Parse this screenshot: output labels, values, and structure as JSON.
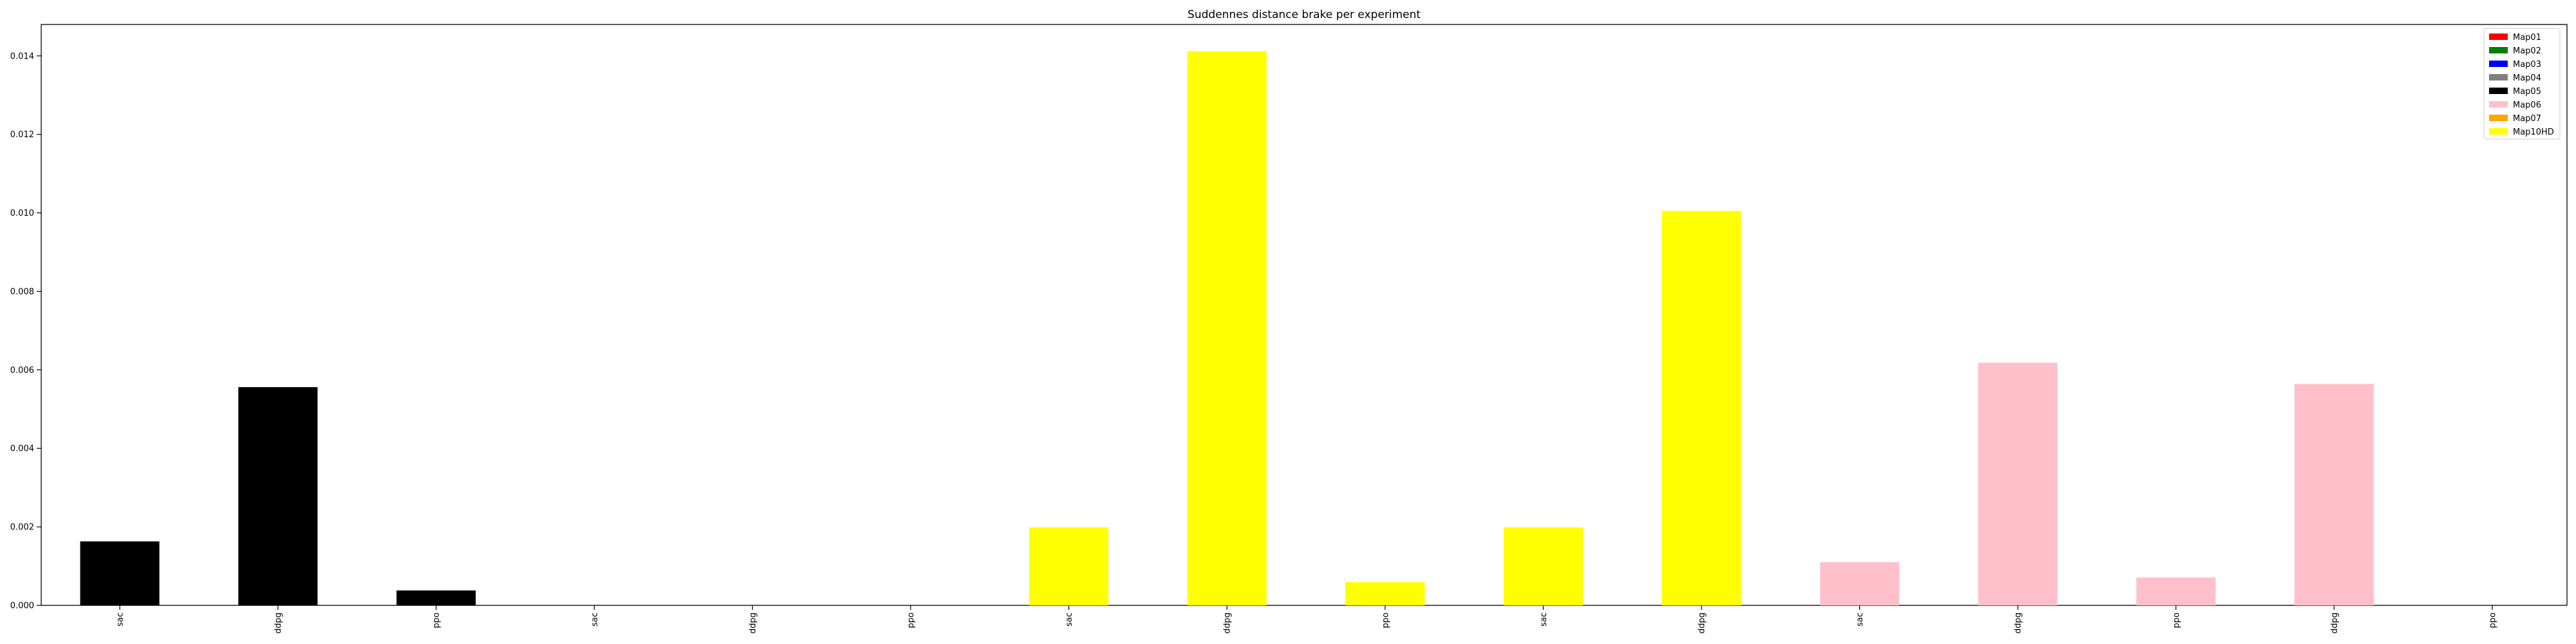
{
  "chart_data": {
    "type": "bar",
    "title": "Suddennes distance brake per experiment",
    "xlabel": "",
    "ylabel": "",
    "ylim": [
      0,
      0.0148
    ],
    "yticks": [
      "0.000",
      "0.002",
      "0.004",
      "0.006",
      "0.008",
      "0.010",
      "0.012",
      "0.014"
    ],
    "ytick_values": [
      0,
      0.002,
      0.004,
      0.006,
      0.008,
      0.01,
      0.012,
      0.014
    ],
    "categories": [
      "sac",
      "ddpg",
      "ppo",
      "sac",
      "ddpg",
      "ppo",
      "sac",
      "ddpg",
      "ppo",
      "sac",
      "ddpg",
      "sac",
      "ddpg",
      "ppo",
      "ddpg",
      "ppo"
    ],
    "values": [
      0.00163,
      0.00556,
      0.00038,
      0,
      0,
      0,
      0.00199,
      0.01412,
      0.00059,
      0.00199,
      0.01005,
      0.0011,
      0.00618,
      0.00071,
      0.00564,
      0
    ],
    "bar_colors": [
      "#000000",
      "#000000",
      "#000000",
      "#ffffff",
      "#ffffff",
      "#ffffff",
      "#ffff00",
      "#ffff00",
      "#ffff00",
      "#ffff00",
      "#ffff00",
      "#ffc0cb",
      "#ffc0cb",
      "#ffc0cb",
      "#ffc0cb",
      "#ffffff"
    ],
    "legend": [
      {
        "name": "Map01",
        "color": "#ff0000"
      },
      {
        "name": "Map02",
        "color": "#008000"
      },
      {
        "name": "Map03",
        "color": "#0000ff"
      },
      {
        "name": "Map04",
        "color": "#808080"
      },
      {
        "name": "Map05",
        "color": "#000000"
      },
      {
        "name": "Map06",
        "color": "#ffc0cb"
      },
      {
        "name": "Map07",
        "color": "#ffa500"
      },
      {
        "name": "Map10HD",
        "color": "#ffff00"
      }
    ],
    "legend_position": "top-right",
    "grid": false
  }
}
